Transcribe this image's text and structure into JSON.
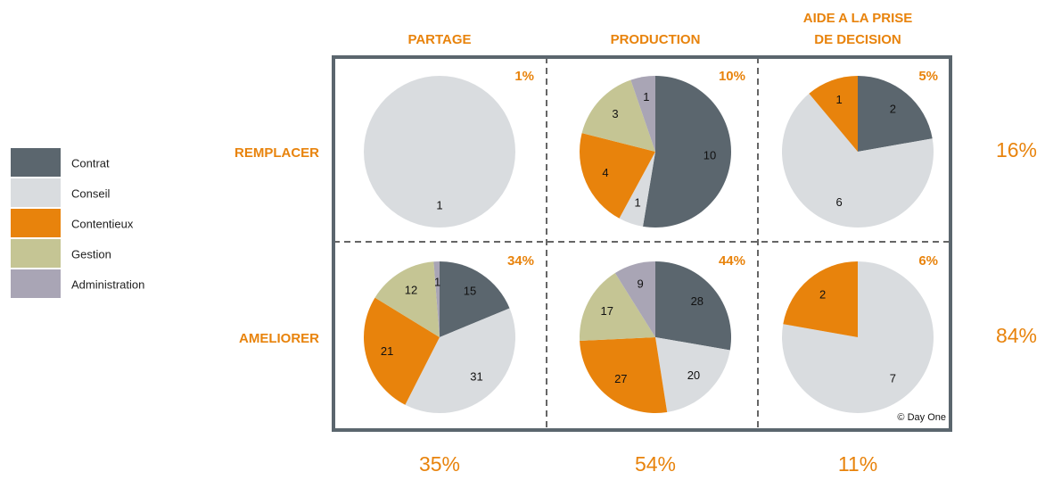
{
  "chart_data": {
    "type": "pie",
    "series": [
      {
        "name": "Contrat",
        "color": "#5b666e"
      },
      {
        "name": "Conseil",
        "color": "#d9dcdf"
      },
      {
        "name": "Contentieux",
        "color": "#e8830c"
      },
      {
        "name": "Gestion",
        "color": "#c5c594"
      },
      {
        "name": "Administration",
        "color": "#a9a5b5"
      }
    ],
    "columns": [
      {
        "name_lines": [
          "PARTAGE"
        ],
        "total": {
          "value": 35,
          "label": "35%"
        }
      },
      {
        "name_lines": [
          "PRODUCTION"
        ],
        "total": {
          "value": 54,
          "label": "54%"
        }
      },
      {
        "name_lines": [
          "AIDE A LA PRISE",
          "DE DECISION"
        ],
        "total": {
          "value": 11,
          "label": "11%"
        }
      }
    ],
    "rows": [
      {
        "name": "REMPLACER",
        "total": {
          "value": 16,
          "label": "16%"
        }
      },
      {
        "name": "AMELIORER",
        "total": {
          "value": 84,
          "label": "84%"
        }
      }
    ],
    "cells": [
      {
        "row": 0,
        "col": 0,
        "share": {
          "value": 1,
          "label": "1%"
        },
        "values": [
          null,
          1,
          null,
          null,
          null
        ]
      },
      {
        "row": 0,
        "col": 1,
        "share": {
          "value": 10,
          "label": "10%"
        },
        "values": [
          10,
          1,
          4,
          3,
          1
        ]
      },
      {
        "row": 0,
        "col": 2,
        "share": {
          "value": 5,
          "label": "5%"
        },
        "values": [
          2,
          6,
          1,
          null,
          null
        ]
      },
      {
        "row": 1,
        "col": 0,
        "share": {
          "value": 34,
          "label": "34%"
        },
        "values": [
          15,
          31,
          21,
          12,
          1
        ]
      },
      {
        "row": 1,
        "col": 1,
        "share": {
          "value": 44,
          "label": "44%"
        },
        "values": [
          28,
          20,
          27,
          17,
          9
        ]
      },
      {
        "row": 1,
        "col": 2,
        "share": {
          "value": 6,
          "label": "6%"
        },
        "values": [
          null,
          7,
          2,
          null,
          null
        ]
      }
    ],
    "credit": "© Day One"
  }
}
